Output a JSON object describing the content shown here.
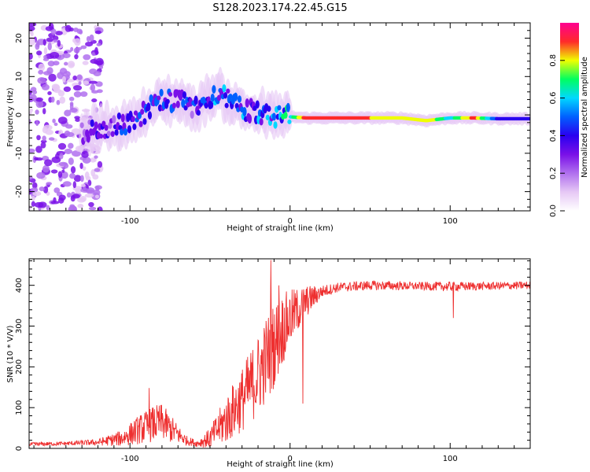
{
  "title": "S128.2023.174.22.45.G15",
  "colors": {
    "snr_line": "#ee3030",
    "colormap": [
      "#ffffff",
      "#e6c8f5",
      "#b070ee",
      "#7a10e8",
      "#2a00f0",
      "#0060ff",
      "#00d8ff",
      "#00ff60",
      "#f0ff00",
      "#ff2a2a",
      "#ff0090"
    ]
  },
  "chart_data": [
    {
      "type": "heatmap",
      "title": "S128.2023.174.22.45.G15",
      "xlabel": "Height of straight line (km)",
      "ylabel": "Frequency (Hz)",
      "xlim": [
        -163,
        150
      ],
      "ylim": [
        -25,
        24
      ],
      "xticks": [
        "-100",
        "0",
        "100"
      ],
      "xtick_values": [
        -100,
        0,
        100
      ],
      "yticks": [
        "-20",
        "-10",
        "0",
        "10",
        "20"
      ],
      "ytick_values": [
        -20,
        -10,
        0,
        10,
        20
      ],
      "colorbar": {
        "label": "Normalized spectral amplitude",
        "range": [
          0,
          1
        ],
        "ticks": [
          "0.0",
          "0.2",
          "0.4",
          "0.6",
          "0.8"
        ],
        "tick_values": [
          0,
          0.2,
          0.4,
          0.6,
          0.8
        ]
      },
      "ridge": [
        {
          "x": -130,
          "f": -4.5,
          "a": 0.25
        },
        {
          "x": -115,
          "f": -3.5,
          "a": 0.35
        },
        {
          "x": -100,
          "f": -2.0,
          "a": 0.4
        },
        {
          "x": -90,
          "f": 1.0,
          "a": 0.4
        },
        {
          "x": -80,
          "f": 3.5,
          "a": 0.45
        },
        {
          "x": -70,
          "f": 4.0,
          "a": 0.4
        },
        {
          "x": -60,
          "f": 1.5,
          "a": 0.4
        },
        {
          "x": -45,
          "f": 6.0,
          "a": 0.45
        },
        {
          "x": -35,
          "f": 2.5,
          "a": 0.45
        },
        {
          "x": -25,
          "f": 1.0,
          "a": 0.45
        },
        {
          "x": -10,
          "f": -0.5,
          "a": 0.5
        },
        {
          "x": 0,
          "f": -0.5,
          "a": 0.6
        },
        {
          "x": 10,
          "f": -0.8,
          "a": 0.9
        },
        {
          "x": 40,
          "f": -0.8,
          "a": 0.9
        },
        {
          "x": 70,
          "f": -0.8,
          "a": 0.75
        },
        {
          "x": 85,
          "f": -1.5,
          "a": 0.85
        },
        {
          "x": 100,
          "f": -0.8,
          "a": 0.6
        },
        {
          "x": 115,
          "f": -0.8,
          "a": 0.9
        },
        {
          "x": 130,
          "f": -1.0,
          "a": 0.4
        },
        {
          "x": 150,
          "f": -1.0,
          "a": 0.35
        }
      ]
    },
    {
      "type": "line",
      "xlabel": "Height of straight line (km)",
      "ylabel": "SNR (10 * V/V)",
      "xlim": [
        -163,
        150
      ],
      "ylim": [
        0,
        465
      ],
      "xticks": [
        "-100",
        "0",
        "100"
      ],
      "xtick_values": [
        -100,
        0,
        100
      ],
      "yticks": [
        "0",
        "100",
        "200",
        "300",
        "400"
      ],
      "ytick_values": [
        0,
        100,
        200,
        300,
        400
      ],
      "series": [
        {
          "color": "#ee3030",
          "envelope_x": [
            -163,
            -140,
            -120,
            -105,
            -95,
            -85,
            -80,
            -72,
            -65,
            -58,
            -50,
            -40,
            -30,
            -20,
            -12,
            -5,
            0,
            10,
            20,
            30,
            50,
            80,
            100,
            120,
            150
          ],
          "envelope_y": [
            10,
            12,
            15,
            25,
            45,
            60,
            65,
            40,
            20,
            12,
            25,
            70,
            120,
            180,
            240,
            290,
            320,
            360,
            385,
            395,
            400,
            398,
            397,
            398,
            400
          ],
          "noise_amplitude": [
            5,
            5,
            8,
            20,
            35,
            45,
            45,
            30,
            12,
            8,
            25,
            60,
            80,
            100,
            110,
            90,
            70,
            40,
            15,
            12,
            12,
            10,
            12,
            10,
            10
          ],
          "spikes": [
            {
              "x": -88,
              "y": 148
            },
            {
              "x": -12,
              "y": 462
            },
            {
              "x": -7,
              "y": 400
            },
            {
              "x": 102,
              "y": 440
            },
            {
              "x": 102,
              "y": 320
            },
            {
              "x": 8,
              "y": 110
            }
          ]
        }
      ]
    }
  ]
}
